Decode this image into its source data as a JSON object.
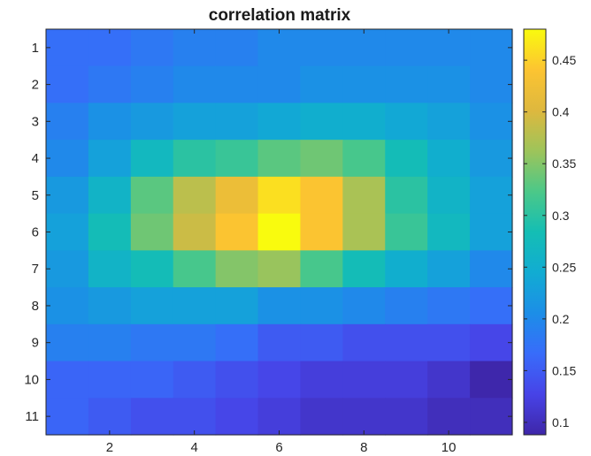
{
  "chart_data": {
    "type": "heatmap",
    "title": "correlation matrix",
    "colormap": "parula",
    "rows": [
      "1",
      "2",
      "3",
      "4",
      "5",
      "6",
      "7",
      "8",
      "9",
      "10",
      "11"
    ],
    "columns": [
      "1",
      "2",
      "3",
      "4",
      "5",
      "6",
      "7",
      "8",
      "9",
      "10",
      "11"
    ],
    "x_ticks": [
      2,
      4,
      6,
      8,
      10
    ],
    "x_tick_labels": [
      "2",
      "4",
      "6",
      "8",
      "10"
    ],
    "y_ticks": [
      1,
      2,
      3,
      4,
      5,
      6,
      7,
      8,
      9,
      10,
      11
    ],
    "y_tick_labels": [
      "1",
      "2",
      "3",
      "4",
      "5",
      "6",
      "7",
      "8",
      "9",
      "10",
      "11"
    ],
    "clim": [
      0.088,
      0.48
    ],
    "colorbar_ticks": [
      0.1,
      0.15,
      0.2,
      0.25,
      0.3,
      0.35,
      0.4,
      0.45
    ],
    "colorbar_tick_labels": [
      "0.1",
      "0.15",
      "0.2",
      "0.25",
      "0.3",
      "0.35",
      "0.4",
      "0.45"
    ],
    "values": [
      [
        0.17,
        0.17,
        0.18,
        0.19,
        0.19,
        0.2,
        0.2,
        0.2,
        0.2,
        0.2,
        0.2
      ],
      [
        0.17,
        0.18,
        0.19,
        0.2,
        0.2,
        0.2,
        0.21,
        0.21,
        0.21,
        0.21,
        0.2
      ],
      [
        0.19,
        0.21,
        0.22,
        0.23,
        0.23,
        0.24,
        0.25,
        0.25,
        0.24,
        0.23,
        0.21
      ],
      [
        0.2,
        0.23,
        0.27,
        0.3,
        0.31,
        0.33,
        0.34,
        0.32,
        0.28,
        0.25,
        0.22
      ],
      [
        0.22,
        0.26,
        0.33,
        0.38,
        0.42,
        0.46,
        0.44,
        0.37,
        0.3,
        0.26,
        0.23
      ],
      [
        0.23,
        0.28,
        0.34,
        0.39,
        0.44,
        0.48,
        0.44,
        0.37,
        0.31,
        0.27,
        0.23
      ],
      [
        0.22,
        0.26,
        0.28,
        0.32,
        0.35,
        0.36,
        0.32,
        0.28,
        0.25,
        0.23,
        0.2
      ],
      [
        0.21,
        0.22,
        0.23,
        0.23,
        0.23,
        0.21,
        0.21,
        0.2,
        0.19,
        0.18,
        0.17
      ],
      [
        0.19,
        0.19,
        0.18,
        0.18,
        0.17,
        0.15,
        0.15,
        0.14,
        0.14,
        0.14,
        0.13
      ],
      [
        0.16,
        0.16,
        0.16,
        0.15,
        0.14,
        0.13,
        0.12,
        0.12,
        0.12,
        0.11,
        0.09
      ],
      [
        0.16,
        0.15,
        0.14,
        0.14,
        0.13,
        0.12,
        0.11,
        0.11,
        0.11,
        0.1,
        0.1
      ]
    ],
    "xlabel": "",
    "ylabel": ""
  }
}
